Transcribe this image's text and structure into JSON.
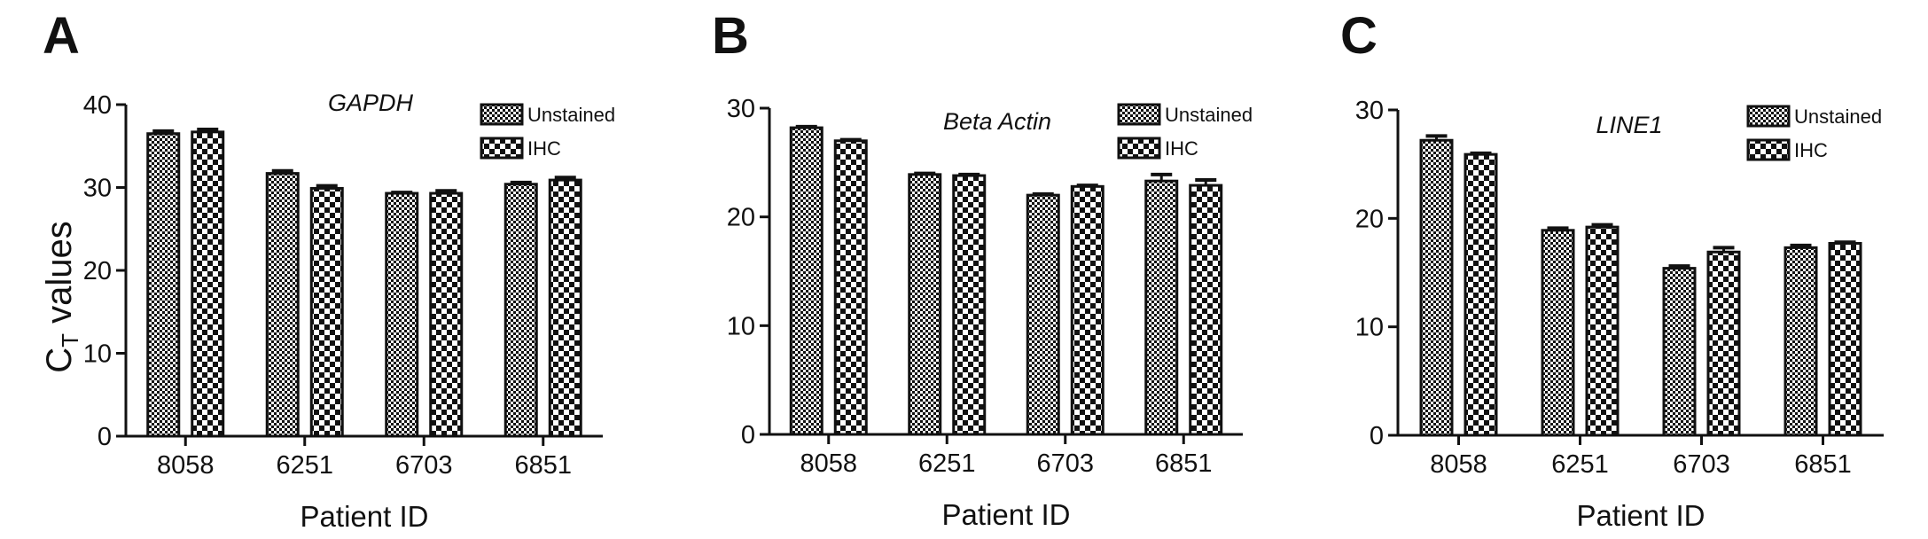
{
  "figure": {
    "y_axis_title_main": "C",
    "y_axis_title_sub": "T",
    "y_axis_title_rest": " values"
  },
  "colors": {
    "bar_stroke": "#111111",
    "pattern_dark": "#111111",
    "pattern_light": "#ffffff",
    "axis": "#111111"
  },
  "chart_data": [
    {
      "panel": "A",
      "type": "bar",
      "title": "GAPDH",
      "xlabel": "Patient ID",
      "ylabel": "CT values",
      "categories": [
        "8058",
        "6251",
        "6703",
        "6851"
      ],
      "ylim": [
        0,
        40
      ],
      "yticks": [
        0,
        10,
        20,
        30,
        40
      ],
      "legend_position": "top-right",
      "grid": false,
      "series": [
        {
          "name": "Unstained",
          "pattern": "fine",
          "values": [
            36.5,
            31.7,
            29.3,
            30.4
          ],
          "errors": [
            0.3,
            0.3,
            0.1,
            0.2
          ]
        },
        {
          "name": "IHC",
          "pattern": "coarse",
          "values": [
            36.7,
            29.9,
            29.3,
            30.9
          ],
          "errors": [
            0.3,
            0.3,
            0.3,
            0.3
          ]
        }
      ]
    },
    {
      "panel": "B",
      "type": "bar",
      "title": "Beta Actin",
      "xlabel": "Patient ID",
      "ylabel": "",
      "categories": [
        "8058",
        "6251",
        "6703",
        "6851"
      ],
      "ylim": [
        0,
        30
      ],
      "yticks": [
        0,
        10,
        20,
        30
      ],
      "legend_position": "top-right",
      "grid": false,
      "series": [
        {
          "name": "Unstained",
          "pattern": "fine",
          "values": [
            28.2,
            23.9,
            22.0,
            23.3
          ],
          "errors": [
            0.1,
            0.1,
            0.1,
            0.6
          ]
        },
        {
          "name": "IHC",
          "pattern": "coarse",
          "values": [
            27.0,
            23.8,
            22.8,
            22.9
          ],
          "errors": [
            0.1,
            0.1,
            0.1,
            0.5
          ]
        }
      ]
    },
    {
      "panel": "C",
      "type": "bar",
      "title": "LINE1",
      "xlabel": "Patient ID",
      "ylabel": "",
      "categories": [
        "8058",
        "6251",
        "6703",
        "6851"
      ],
      "ylim": [
        0,
        30
      ],
      "yticks": [
        0,
        10,
        20,
        30
      ],
      "legend_position": "top-right",
      "grid": false,
      "series": [
        {
          "name": "Unstained",
          "pattern": "fine",
          "values": [
            27.2,
            18.9,
            15.4,
            17.3
          ],
          "errors": [
            0.4,
            0.2,
            0.2,
            0.2
          ]
        },
        {
          "name": "IHC",
          "pattern": "coarse",
          "values": [
            25.9,
            19.2,
            16.9,
            17.7
          ],
          "errors": [
            0.1,
            0.2,
            0.4,
            0.1
          ]
        }
      ]
    }
  ]
}
